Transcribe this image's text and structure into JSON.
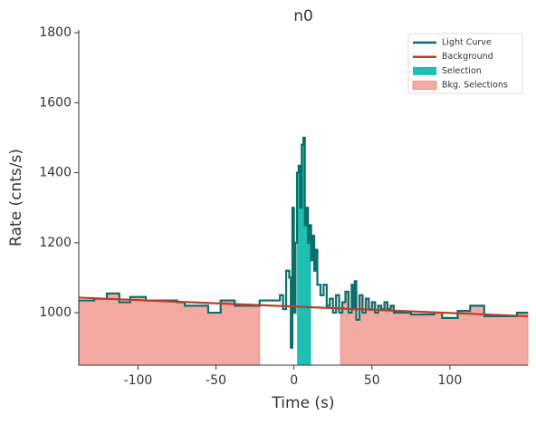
{
  "chart_data": {
    "type": "step",
    "title": "n0",
    "xlabel": "Time (s)",
    "ylabel": "Rate (cnts/s)",
    "xlim": [
      -138,
      150
    ],
    "ylim": [
      850,
      1808
    ],
    "xticks": [
      -100,
      -50,
      0,
      50,
      100
    ],
    "yticks": [
      1000,
      1200,
      1400,
      1600,
      1800
    ],
    "legend": "upper right",
    "series": [
      {
        "name": "Light Curve",
        "color": "#0b6e69",
        "x": [
          -138,
          -128,
          -120,
          -112,
          -105,
          -95,
          -85,
          -75,
          -70,
          -60,
          -55,
          -47,
          -38,
          -22,
          -9,
          -7,
          -5,
          -3,
          -2,
          -1,
          0,
          1,
          2,
          3,
          4,
          5,
          6,
          7,
          8,
          9,
          10,
          11,
          12,
          13,
          14,
          15,
          17,
          19,
          21,
          23,
          25,
          27,
          29,
          31,
          33,
          35,
          37,
          38,
          39,
          40,
          42,
          44,
          46,
          48,
          50,
          52,
          54,
          56,
          58,
          60,
          62,
          64,
          75,
          90,
          95,
          105,
          113,
          122,
          133,
          143
        ],
        "values": [
          1035,
          1040,
          1055,
          1030,
          1045,
          1035,
          1035,
          1030,
          1020,
          1020,
          1000,
          1035,
          1020,
          1035,
          1050,
          1010,
          1120,
          1100,
          900,
          1300,
          1000,
          1200,
          1400,
          1420,
          1300,
          1480,
          1500,
          1250,
          1300,
          1200,
          1250,
          1150,
          1220,
          1120,
          1180,
          1080,
          1050,
          1080,
          1020,
          1040,
          1000,
          1050,
          1000,
          1030,
          1060,
          1000,
          1080,
          1010,
          1090,
          980,
          1050,
          1000,
          1040,
          1010,
          1030,
          1000,
          1020,
          1010,
          1030,
          1010,
          1020,
          1000,
          995,
          1000,
          985,
          1005,
          1020,
          990,
          990,
          1000
        ]
      },
      {
        "name": "Background",
        "color": "#b5402d",
        "x": [
          -138,
          150
        ],
        "values": [
          1043,
          990
        ]
      },
      {
        "name": "Selection",
        "color": "#1fbfb4",
        "range": [
          2,
          11
        ]
      },
      {
        "name": "Bkg. Selections",
        "color": "#f4aaa3",
        "ranges": [
          [
            -138,
            -22
          ],
          [
            30,
            150
          ]
        ]
      }
    ]
  }
}
